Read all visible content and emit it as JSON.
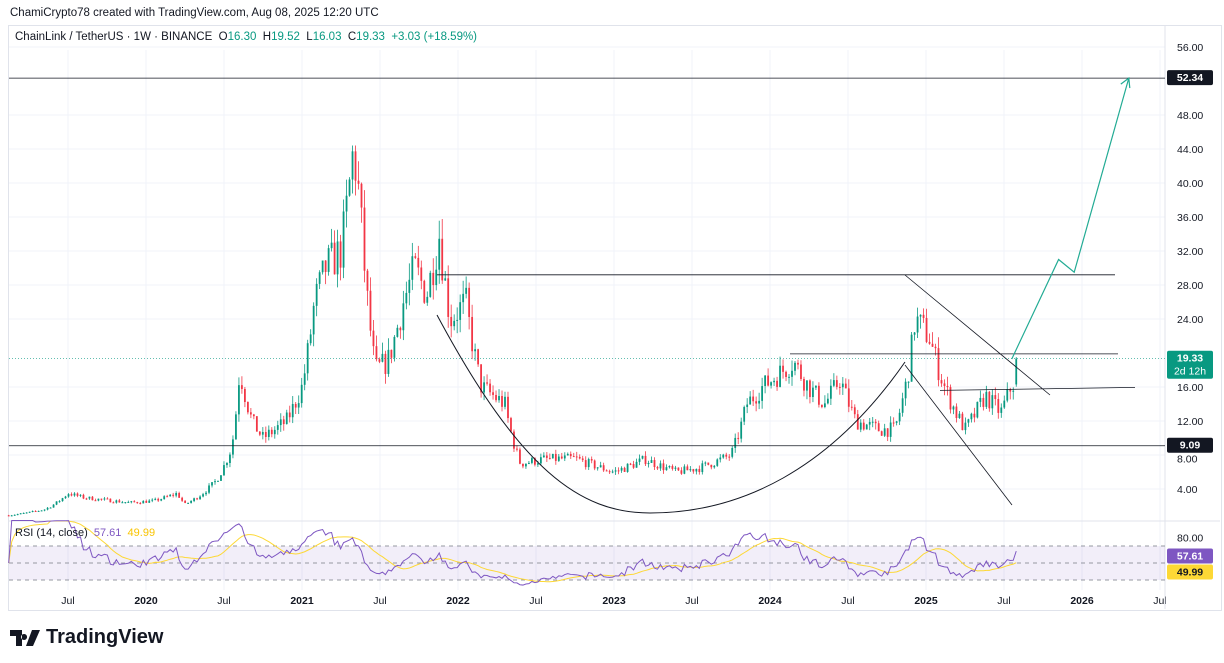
{
  "credit": "ChamiCrypto78 created with TradingView.com, Aug 08, 2025 12:20 UTC",
  "symbol": "ChainLink / TetherUS · 1W · BINANCE",
  "ohlc": {
    "o_label": "O",
    "o": "16.30",
    "h_label": "H",
    "h": "19.52",
    "l_label": "L",
    "l": "16.03",
    "c_label": "C",
    "c": "19.33",
    "change": "+3.03 (+18.59%)"
  },
  "rsi": {
    "label": "RSI (14, close)",
    "value": "57.61",
    "ma": "49.99",
    "axis": "80.00"
  },
  "price_tags": {
    "last": "19.33",
    "countdown": "2d 12h",
    "level_high": "52.34",
    "level_low": "9.09"
  },
  "brand": "TradingView",
  "colors": {
    "up": "#089981",
    "down": "#f23645",
    "rsi": "#7e57c2",
    "rsi_ma": "#fdd835",
    "arrow": "#22ab94"
  },
  "chart_data": {
    "type": "candlestick",
    "title": "ChainLink / TetherUS 1W",
    "y_ticks": [
      "56.00",
      "48.00",
      "44.00",
      "40.00",
      "36.00",
      "32.00",
      "28.00",
      "24.00",
      "16.00",
      "12.00",
      "8.00",
      "4.00"
    ],
    "y_tick_values": [
      56,
      48,
      44,
      40,
      36,
      32,
      28,
      24,
      16,
      12,
      8,
      4
    ],
    "x_ticks": [
      "Jul",
      "2020",
      "Jul",
      "2021",
      "Jul",
      "2022",
      "Jul",
      "2023",
      "Jul",
      "2024",
      "Jul",
      "2025",
      "Jul",
      "2026",
      "Jul"
    ],
    "x_tick_dates": [
      2019.5,
      2020,
      2020.5,
      2021,
      2021.5,
      2022,
      2022.5,
      2023,
      2023.5,
      2024,
      2024.5,
      2025,
      2025.5,
      2026,
      2026.5
    ],
    "price_path": [
      [
        2019.12,
        0.9
      ],
      [
        2019.35,
        1.6
      ],
      [
        2019.5,
        3.5
      ],
      [
        2019.6,
        3
      ],
      [
        2019.9,
        2.4
      ],
      [
        2020.05,
        2.6
      ],
      [
        2020.2,
        3.5
      ],
      [
        2020.25,
        2.2
      ],
      [
        2020.45,
        5
      ],
      [
        2020.55,
        9
      ],
      [
        2020.6,
        18
      ],
      [
        2020.68,
        12
      ],
      [
        2020.75,
        10
      ],
      [
        2020.9,
        12
      ],
      [
        2021.0,
        16
      ],
      [
        2021.08,
        26
      ],
      [
        2021.15,
        30
      ],
      [
        2021.25,
        32
      ],
      [
        2021.33,
        44
      ],
      [
        2021.37,
        38
      ],
      [
        2021.42,
        26
      ],
      [
        2021.47,
        18
      ],
      [
        2021.55,
        19
      ],
      [
        2021.65,
        26
      ],
      [
        2021.72,
        30
      ],
      [
        2021.8,
        27
      ],
      [
        2021.88,
        34
      ],
      [
        2021.95,
        24
      ],
      [
        2022.05,
        26
      ],
      [
        2022.15,
        16
      ],
      [
        2022.3,
        14
      ],
      [
        2022.4,
        7
      ],
      [
        2022.55,
        7.5
      ],
      [
        2022.75,
        7.6
      ],
      [
        2023.0,
        6
      ],
      [
        2023.2,
        7.5
      ],
      [
        2023.4,
        6
      ],
      [
        2023.55,
        6.5
      ],
      [
        2023.75,
        8
      ],
      [
        2023.85,
        14
      ],
      [
        2023.95,
        16
      ],
      [
        2024.15,
        19
      ],
      [
        2024.25,
        16
      ],
      [
        2024.35,
        14
      ],
      [
        2024.45,
        17
      ],
      [
        2024.55,
        12
      ],
      [
        2024.7,
        11
      ],
      [
        2024.8,
        11
      ],
      [
        2024.88,
        17
      ],
      [
        2024.93,
        24
      ],
      [
        2025.02,
        22
      ],
      [
        2025.12,
        16
      ],
      [
        2025.25,
        11
      ],
      [
        2025.38,
        15
      ],
      [
        2025.48,
        13
      ],
      [
        2025.55,
        16.3
      ]
    ],
    "last_candle": {
      "open": 16.3,
      "high": 19.52,
      "low": 16.03,
      "close": 19.33
    },
    "levels": [
      52.34,
      29.2,
      19.9,
      15.6,
      9.09
    ],
    "projection": [
      [
        2025.55,
        19.3
      ],
      [
        2025.85,
        31
      ],
      [
        2025.95,
        29.5
      ],
      [
        2026.3,
        52.34
      ]
    ],
    "rsi_range": [
      0,
      100
    ],
    "rsi_bands": [
      70,
      50,
      30
    ]
  }
}
